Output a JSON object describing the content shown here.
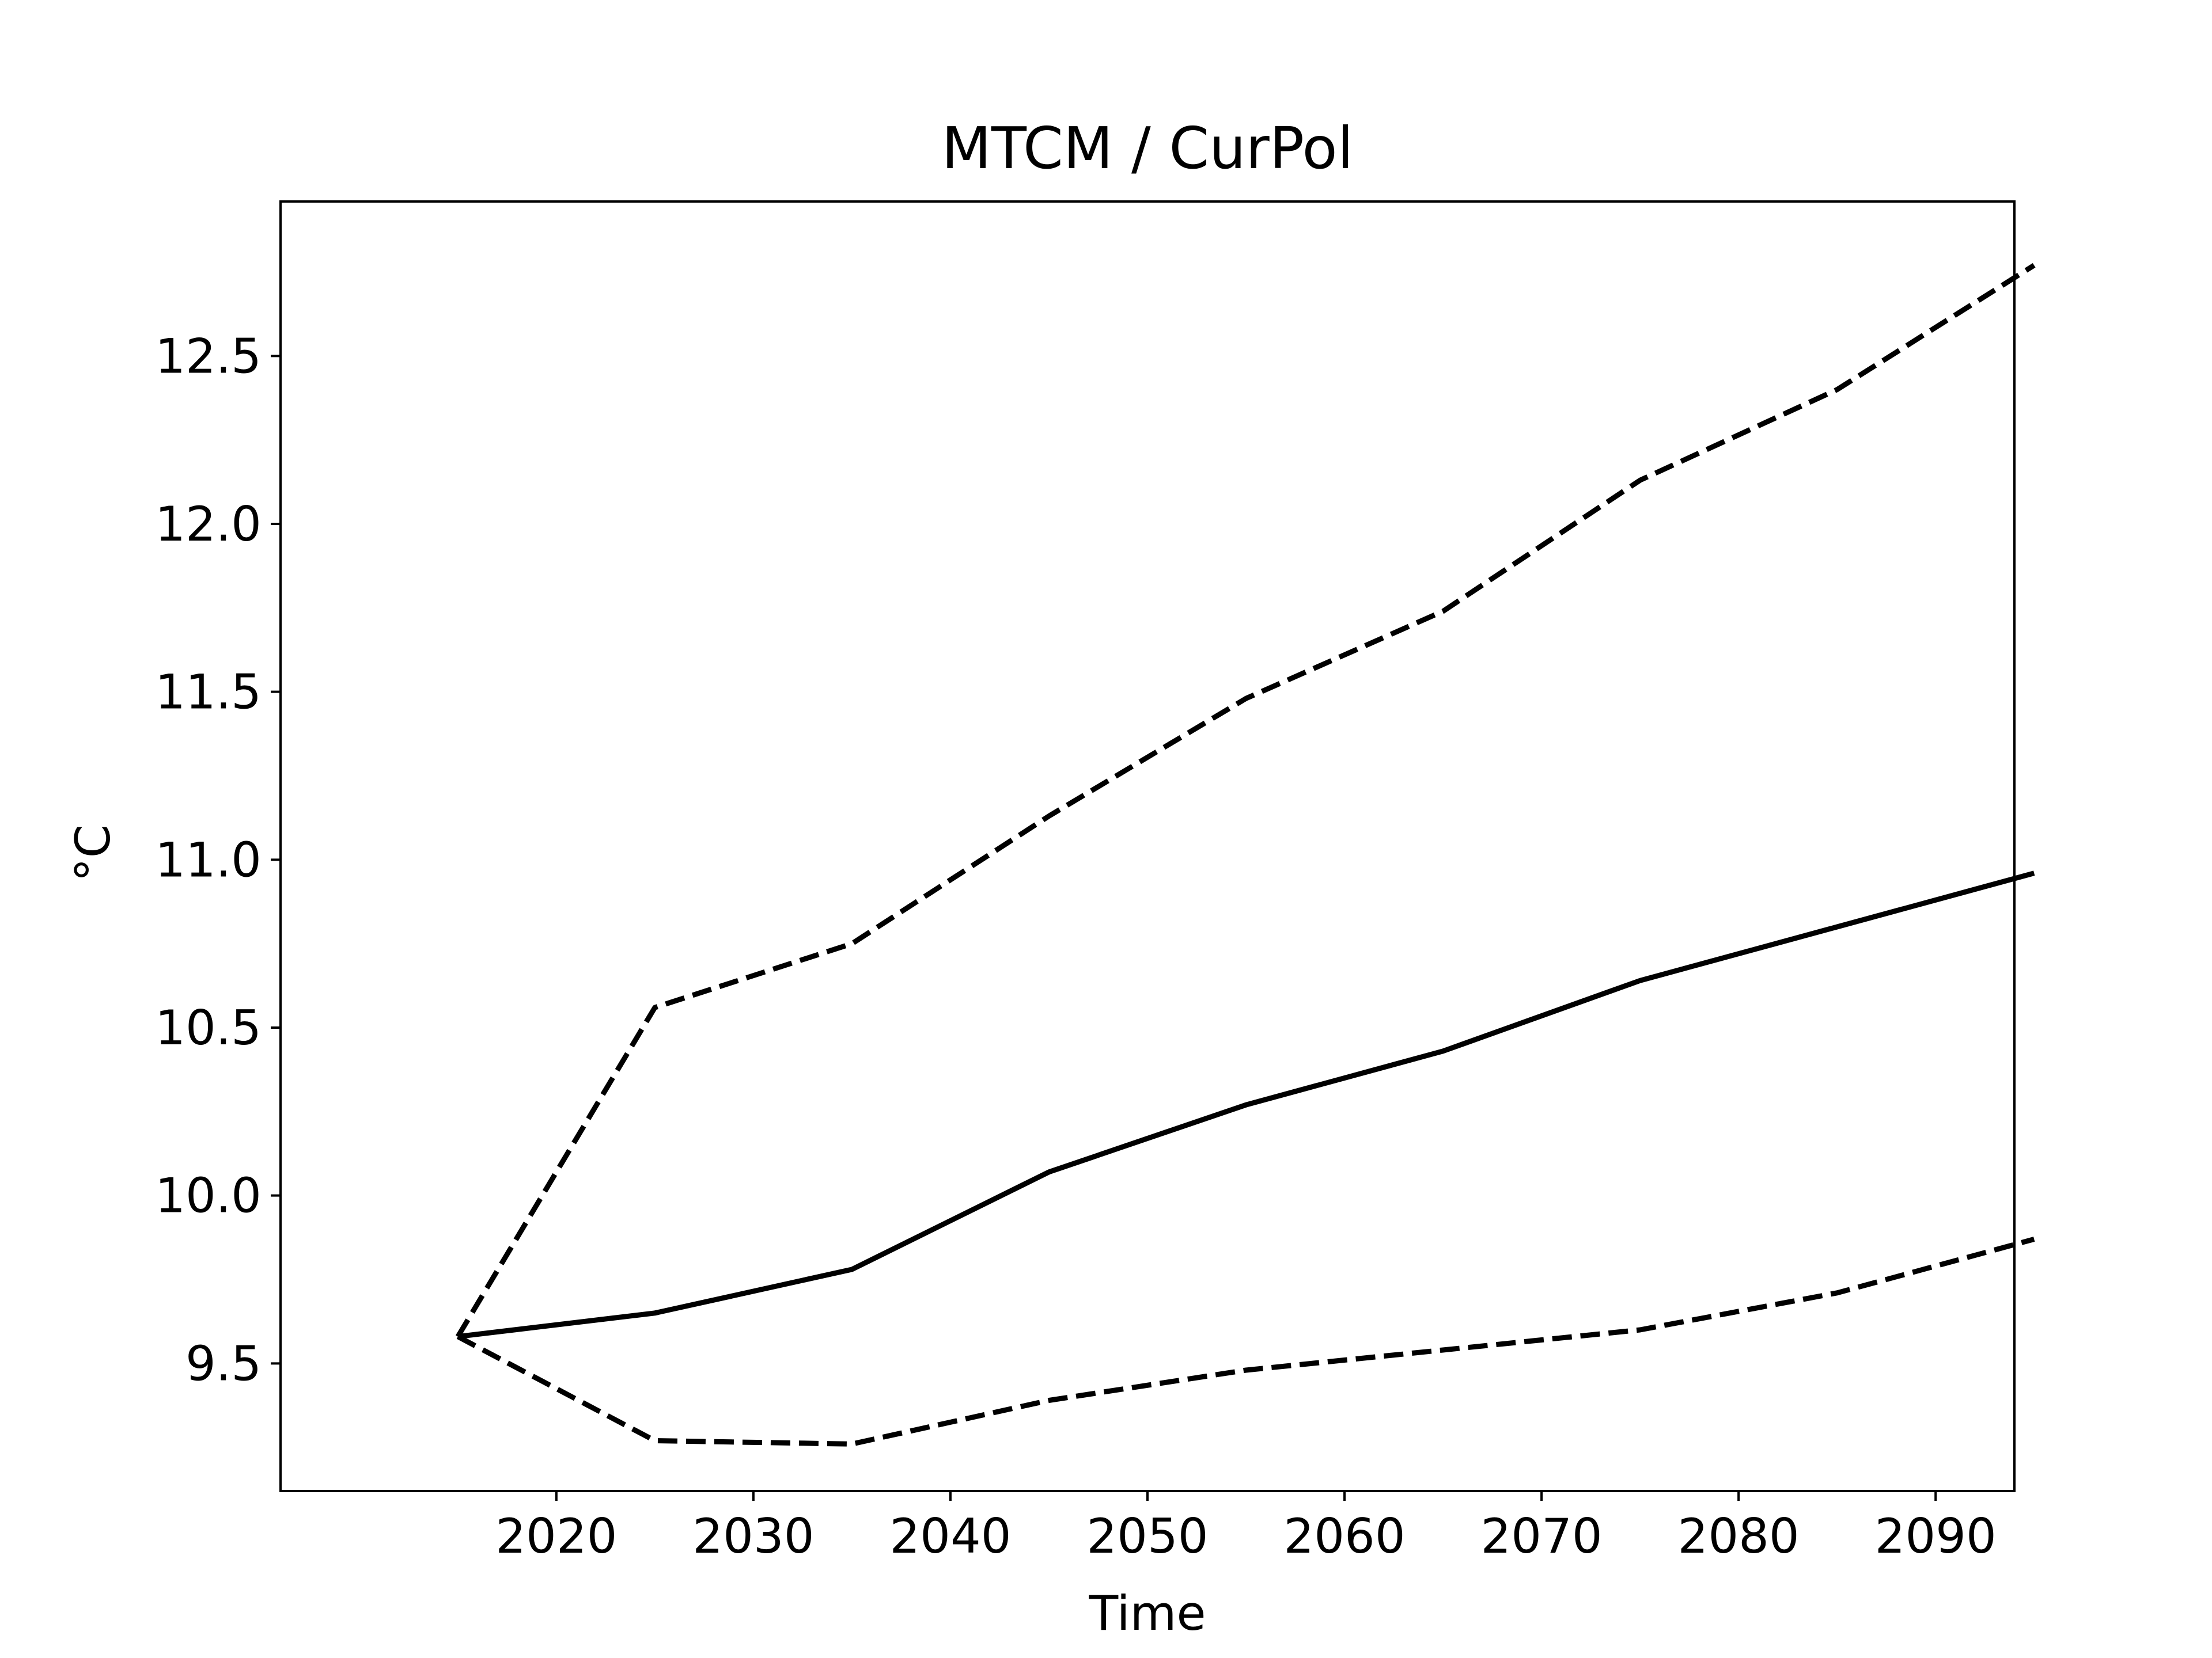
{
  "chart_data": {
    "type": "line",
    "title": "MTCM / CurPol",
    "xlabel": "Time",
    "ylabel": "°C",
    "x": [
      2015,
      2025,
      2035,
      2045,
      2055,
      2065,
      2075,
      2085,
      2095
    ],
    "xlim": [
      2006,
      2094
    ],
    "ylim": [
      9.12,
      12.96
    ],
    "xticks": [
      2020,
      2030,
      2040,
      2050,
      2060,
      2070,
      2080,
      2090
    ],
    "yticks": [
      9.5,
      10.0,
      10.5,
      11.0,
      11.5,
      12.0,
      12.5
    ],
    "xtick_labels": [
      "2020",
      "2030",
      "2040",
      "2050",
      "2060",
      "2070",
      "2080",
      "2090"
    ],
    "ytick_labels": [
      "9.5",
      "10.0",
      "10.5",
      "11.0",
      "11.5",
      "12.0",
      "12.5"
    ],
    "grid": false,
    "legend": "none",
    "series": [
      {
        "style": "solid",
        "color": "#000000",
        "values": [
          9.58,
          9.65,
          9.78,
          10.07,
          10.27,
          10.43,
          10.64,
          10.8,
          10.96
        ]
      },
      {
        "style": "dashed",
        "color": "#000000",
        "values": [
          9.58,
          10.56,
          10.75,
          11.13,
          11.48,
          11.74,
          12.13,
          12.4,
          12.77
        ]
      },
      {
        "style": "dashed",
        "color": "#000000",
        "values": [
          9.58,
          9.27,
          9.26,
          9.39,
          9.48,
          9.54,
          9.6,
          9.71,
          9.87
        ]
      }
    ]
  }
}
